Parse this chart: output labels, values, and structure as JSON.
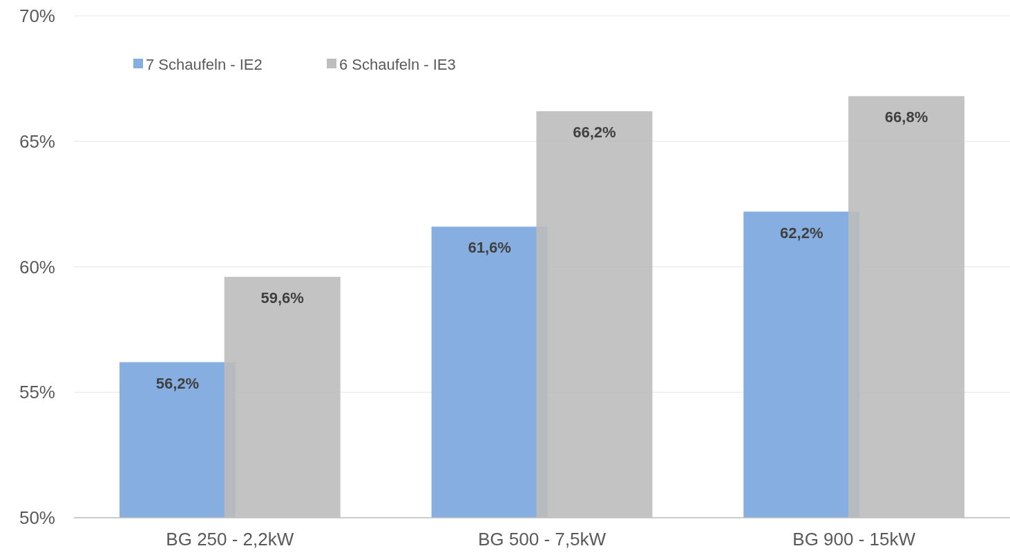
{
  "chart_data": {
    "type": "bar",
    "categories": [
      "BG 250 - 2,2kW",
      "BG 500 - 7,5kW",
      "BG 900 - 15kW"
    ],
    "series": [
      {
        "name": "7 Schaufeln - IE2",
        "color": "#86aee0",
        "values": [
          56.2,
          61.6,
          62.2
        ],
        "value_labels": [
          "56,2%",
          "61,6%",
          "62,2%"
        ]
      },
      {
        "name": "6 Schaufeln - IE3",
        "color": "#bdbdbd",
        "values": [
          59.6,
          66.2,
          66.8
        ],
        "value_labels": [
          "59,6%",
          "66,2%",
          "66,8%"
        ]
      }
    ],
    "ylim": [
      50,
      70
    ],
    "yticks": [
      {
        "value": 50,
        "label": "50%"
      },
      {
        "value": 55,
        "label": "55%"
      },
      {
        "value": 60,
        "label": "60%"
      },
      {
        "value": 65,
        "label": "65%"
      },
      {
        "value": 70,
        "label": "70%"
      }
    ],
    "grid": "y",
    "legend": "top left"
  }
}
